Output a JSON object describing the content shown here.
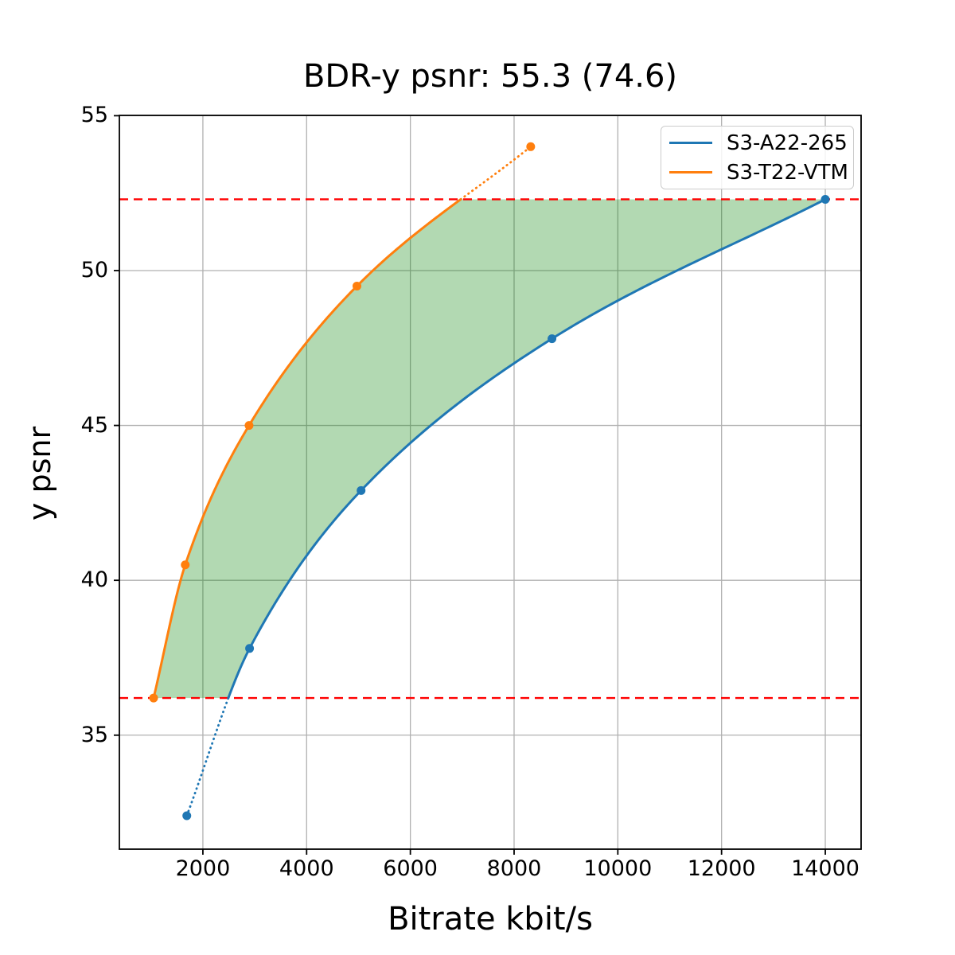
{
  "chart_data": {
    "type": "line",
    "title": "BDR-y psnr: 55.3 (74.6)",
    "xlabel": "Bitrate kbit/s",
    "ylabel": "y psnr",
    "xlim": [
      390,
      14690
    ],
    "ylim": [
      31.32,
      55.01
    ],
    "xticks": [
      2000,
      4000,
      6000,
      8000,
      10000,
      12000,
      14000
    ],
    "yticks": [
      35,
      40,
      45,
      50,
      55
    ],
    "grid": true,
    "grid_color": "#b0b0b0",
    "axis_color": "#000000",
    "background_color": "#ffffff",
    "series": [
      {
        "name": "S3-A22-265",
        "color": "#1f77b4",
        "marker": "circle",
        "x": [
          1690,
          2900,
          5050,
          8730,
          14000
        ],
        "y": [
          32.4,
          37.8,
          42.9,
          47.8,
          52.3
        ]
      },
      {
        "name": "S3-T22-VTM",
        "color": "#ff7f0e",
        "marker": "circle",
        "x": [
          1050,
          1660,
          2890,
          4970,
          8320
        ],
        "y": [
          36.2,
          40.5,
          45.0,
          49.5,
          54.0
        ]
      }
    ],
    "hlines": {
      "values": [
        36.2,
        52.3
      ],
      "color": "#ff0000",
      "style": "dashed",
      "note": "overlap bounds for BD-rate integration; curve parts outside the band are dotted"
    },
    "shaded_region": {
      "between_series": [
        "S3-T22-VTM",
        "S3-A22-265"
      ],
      "y_range": [
        36.2,
        52.3
      ],
      "color": "#008000",
      "opacity": 0.3
    },
    "legend": {
      "position": "upper right",
      "entries": [
        "S3-A22-265",
        "S3-T22-VTM"
      ]
    }
  }
}
